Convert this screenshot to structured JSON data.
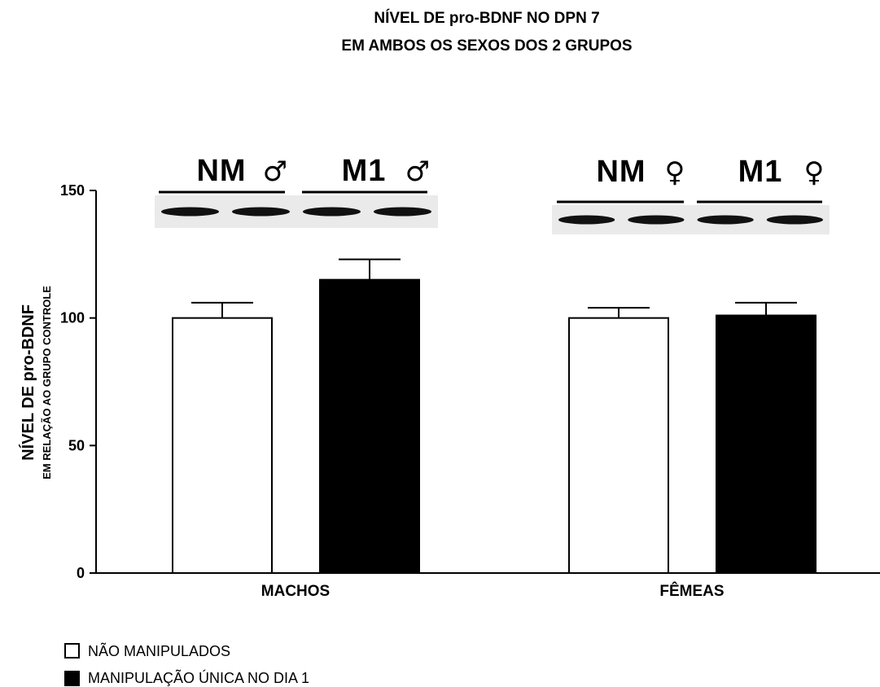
{
  "chart_data": {
    "type": "bar",
    "title_lines": [
      "NÍVEL DE pro-BDNF NO DPN 7",
      "EM AMBOS OS SEXOS DOS 2 GRUPOS"
    ],
    "ylabel_lines": [
      "NÍVEL DE pro-BDNF",
      "EM RELAÇÃO AO GRUPO CONTROLE"
    ],
    "categories": [
      "MACHOS",
      "FÊMEAS"
    ],
    "ylim": [
      0,
      150
    ],
    "yticks": [
      0,
      50,
      100,
      150
    ],
    "series": [
      {
        "name": "NÃO MANIPULADOS",
        "fill": "#ffffff",
        "values": [
          100,
          100
        ],
        "errors": [
          6,
          4
        ]
      },
      {
        "name": "MANIPULAÇÃO ÚNICA NO DIA 1",
        "fill": "#000000",
        "values": [
          115,
          101
        ],
        "errors": [
          8,
          5
        ]
      }
    ],
    "legend_position": "bottom-left"
  },
  "blots": [
    {
      "groups": [
        {
          "label": "NM",
          "symbol": "♂"
        },
        {
          "label": "M1",
          "symbol": "♂"
        }
      ]
    },
    {
      "groups": [
        {
          "label": "NM",
          "symbol": "♀"
        },
        {
          "label": "M1",
          "symbol": "♀"
        }
      ]
    }
  ]
}
